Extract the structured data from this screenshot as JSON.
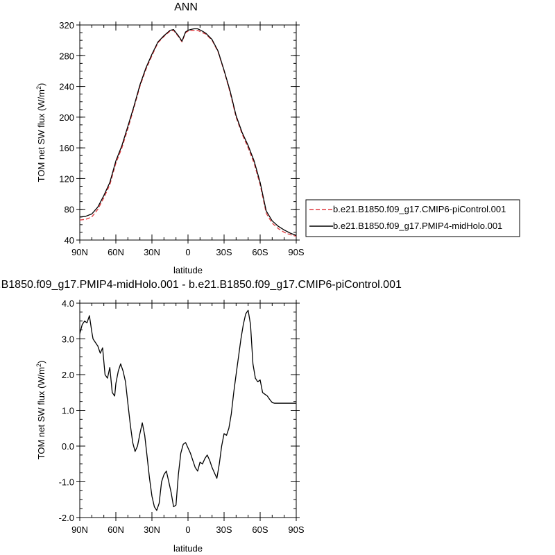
{
  "chart_data": [
    {
      "type": "line",
      "title": "ANN",
      "xlabel": "latitude",
      "ylabel": "TOM net SW flux (W/m",
      "ylabel_sup": "2",
      "ylabel_close": ")",
      "xlim": [
        90,
        -90
      ],
      "ylim": [
        40,
        320
      ],
      "x_ticks": [
        90,
        60,
        30,
        0,
        -30,
        -60,
        -90
      ],
      "x_tick_labels": [
        "90N",
        "60N",
        "30N",
        "0",
        "30S",
        "60S",
        "90S"
      ],
      "y_ticks": [
        40,
        80,
        120,
        160,
        200,
        240,
        280,
        320
      ],
      "y_tick_labels": [
        "40",
        "80",
        "120",
        "160",
        "200",
        "240",
        "280",
        "320"
      ],
      "legend_placement": "right",
      "series": [
        {
          "name": "b.e21.B1850.f09_g17.CMIP6-piControl.001",
          "color": "#e0393e",
          "style": "dashed",
          "x": [
            90,
            85,
            80,
            75,
            70,
            65,
            60,
            55,
            50,
            45,
            40,
            35,
            30,
            25,
            20,
            15,
            12,
            8,
            5,
            2,
            0,
            -2,
            -5,
            -8,
            -12,
            -15,
            -20,
            -25,
            -30,
            -35,
            -40,
            -45,
            -50,
            -55,
            -60,
            -65,
            -70,
            -75,
            -80,
            -85,
            -90
          ],
          "y": [
            66,
            67,
            70,
            80,
            95,
            112,
            140,
            160,
            185,
            212,
            240,
            262,
            280,
            297,
            305,
            312,
            313,
            305,
            298,
            310,
            312,
            313,
            313,
            313,
            310,
            308,
            300,
            285,
            260,
            232,
            200,
            178,
            160,
            140,
            112,
            75,
            62,
            55,
            50,
            47,
            45
          ]
        },
        {
          "name": "b.e21.B1850.f09_g17.PMIP4-midHolo.001",
          "color": "#000000",
          "style": "solid",
          "x": [
            90,
            85,
            80,
            75,
            70,
            65,
            60,
            55,
            50,
            45,
            40,
            35,
            30,
            25,
            20,
            15,
            12,
            8,
            5,
            2,
            0,
            -2,
            -5,
            -8,
            -12,
            -15,
            -20,
            -25,
            -30,
            -35,
            -40,
            -45,
            -50,
            -55,
            -60,
            -65,
            -70,
            -75,
            -80,
            -85,
            -90
          ],
          "y": [
            70,
            71,
            74,
            83,
            98,
            115,
            143,
            163,
            188,
            214,
            242,
            264,
            282,
            298,
            306,
            313,
            314,
            306,
            299,
            311,
            313,
            314,
            315,
            315,
            312,
            309,
            301,
            286,
            261,
            234,
            202,
            180,
            163,
            143,
            115,
            78,
            65,
            58,
            53,
            49,
            46
          ]
        }
      ]
    },
    {
      "type": "line",
      "title": "b.e21.B1850.f09_g17.PMIP4-midHolo.001 - b.e21.B1850.f09_g17.CMIP6-piControl.001",
      "xlabel": "latitude",
      "ylabel": "TOM net SW flux (W/m",
      "ylabel_sup": "2",
      "ylabel_close": ")",
      "xlim": [
        90,
        -90
      ],
      "ylim": [
        -2.0,
        4.0
      ],
      "x_ticks": [
        90,
        60,
        30,
        0,
        -30,
        -60,
        -90
      ],
      "x_tick_labels": [
        "90N",
        "60N",
        "30N",
        "0",
        "30S",
        "60S",
        "90S"
      ],
      "y_ticks": [
        -2,
        -1,
        0,
        1,
        2,
        3,
        4
      ],
      "y_tick_labels": [
        "-2.0",
        "-1.0",
        "0.0",
        "1.0",
        "2.0",
        "3.0",
        "4.0"
      ],
      "series": [
        {
          "color": "#000000",
          "style": "solid",
          "x": [
            90,
            88,
            86,
            84,
            82,
            80,
            79,
            77,
            75,
            73,
            71,
            69,
            67,
            65,
            63,
            61,
            60,
            58,
            56,
            54,
            52,
            50,
            48,
            46,
            44,
            42,
            40,
            38,
            36,
            34,
            32,
            30,
            28,
            26,
            24,
            22,
            20,
            18,
            16,
            14,
            12,
            10,
            8,
            6,
            4,
            2,
            0,
            -2,
            -4,
            -6,
            -8,
            -10,
            -12,
            -14,
            -16,
            -18,
            -20,
            -22,
            -24,
            -26,
            -28,
            -30,
            -32,
            -34,
            -36,
            -38,
            -40,
            -42,
            -44,
            -46,
            -48,
            -50,
            -52,
            -54,
            -56,
            -58,
            -60,
            -62,
            -64,
            -66,
            -68,
            -70,
            -72,
            -74,
            -76,
            -78,
            -80,
            -82,
            -84,
            -86,
            -88,
            -90
          ],
          "y": [
            3.15,
            3.4,
            3.5,
            3.45,
            3.65,
            3.2,
            3.0,
            2.9,
            2.8,
            2.6,
            2.75,
            2.0,
            1.9,
            2.2,
            1.5,
            1.4,
            1.75,
            2.1,
            2.3,
            2.1,
            1.8,
            1.2,
            0.6,
            0.1,
            -0.15,
            0.0,
            0.35,
            0.65,
            0.3,
            -0.3,
            -0.9,
            -1.4,
            -1.7,
            -1.8,
            -1.6,
            -1.0,
            -0.8,
            -0.7,
            -1.0,
            -1.3,
            -1.7,
            -1.65,
            -0.8,
            -0.2,
            0.05,
            0.1,
            -0.05,
            -0.2,
            -0.4,
            -0.6,
            -0.7,
            -0.45,
            -0.5,
            -0.35,
            -0.25,
            -0.4,
            -0.6,
            -0.75,
            -0.9,
            -0.5,
            0.0,
            0.35,
            0.3,
            0.5,
            0.9,
            1.5,
            2.0,
            2.5,
            3.0,
            3.4,
            3.7,
            3.8,
            3.4,
            2.3,
            1.9,
            1.8,
            1.85,
            1.5,
            1.45,
            1.4,
            1.3,
            1.22,
            1.2,
            1.2,
            1.2,
            1.2,
            1.2,
            1.2,
            1.2,
            1.2,
            1.2,
            1.2
          ]
        }
      ]
    }
  ]
}
